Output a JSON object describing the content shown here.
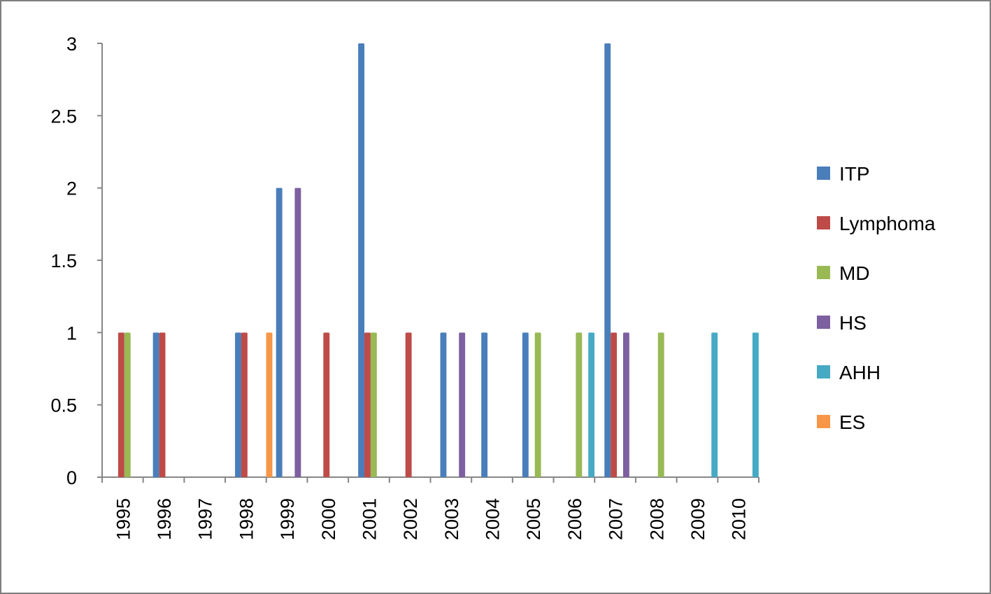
{
  "chart_data": {
    "type": "bar",
    "title": "",
    "xlabel": "",
    "ylabel": "",
    "ylim": [
      0,
      3
    ],
    "y_ticks": [
      "0",
      "0.5",
      "1",
      "1.5",
      "2",
      "2.5",
      "3"
    ],
    "categories": [
      "1995",
      "1996",
      "1997",
      "1998",
      "1999",
      "2000",
      "2001",
      "2002",
      "2003",
      "2004",
      "2005",
      "2006",
      "2007",
      "2008",
      "2009",
      "2010"
    ],
    "series": [
      {
        "name": "ITP",
        "color": "#4a7ebb",
        "values": [
          0,
          1,
          0,
          1,
          2,
          0,
          3,
          0,
          1,
          1,
          1,
          0,
          3,
          0,
          0,
          0
        ]
      },
      {
        "name": "Lymphoma",
        "color": "#be4b48",
        "values": [
          1,
          1,
          0,
          1,
          0,
          1,
          1,
          1,
          0,
          0,
          0,
          0,
          1,
          0,
          0,
          0
        ]
      },
      {
        "name": "MD",
        "color": "#98b954",
        "values": [
          1,
          0,
          0,
          0,
          0,
          0,
          1,
          0,
          0,
          0,
          1,
          1,
          0,
          1,
          0,
          0
        ]
      },
      {
        "name": "HS",
        "color": "#7d60a0",
        "values": [
          0,
          0,
          0,
          0,
          2,
          0,
          0,
          0,
          1,
          0,
          0,
          0,
          1,
          0,
          0,
          0
        ]
      },
      {
        "name": "AHH",
        "color": "#46aac5",
        "values": [
          0,
          0,
          0,
          0,
          0,
          0,
          0,
          0,
          0,
          0,
          0,
          1,
          0,
          0,
          1,
          1
        ]
      },
      {
        "name": "ES",
        "color": "#f79646",
        "values": [
          0,
          0,
          0,
          1,
          0,
          0,
          0,
          0,
          0,
          0,
          0,
          0,
          0,
          0,
          0,
          0
        ]
      }
    ],
    "grid": false,
    "legend_position": "right"
  }
}
